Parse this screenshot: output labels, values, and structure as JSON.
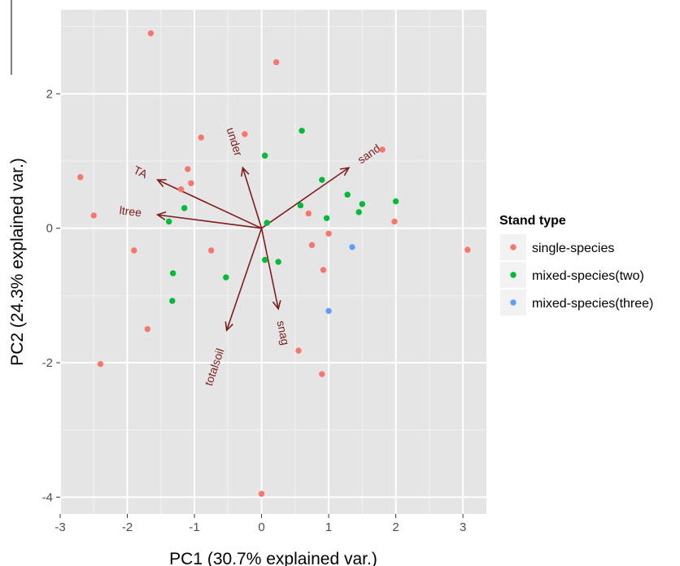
{
  "chart_data": {
    "type": "scatter",
    "title": "",
    "xlabel": "PC1 (30.7% explained var.)",
    "ylabel": "PC2 (24.3% explained var.)",
    "xlim": [
      -3.0,
      3.35
    ],
    "ylim": [
      -4.25,
      3.25
    ],
    "xticks": [
      -3,
      -2,
      -1,
      0,
      1,
      2,
      3
    ],
    "yticks": [
      -4,
      -2,
      0,
      2
    ],
    "grid": true,
    "legend": {
      "title": "Stand type",
      "placement": "right"
    },
    "series": [
      {
        "name": "single-species",
        "color": "#F8766D",
        "points": [
          [
            -1.65,
            2.9
          ],
          [
            0.22,
            2.47
          ],
          [
            -0.9,
            1.35
          ],
          [
            -0.25,
            1.4
          ],
          [
            -1.1,
            0.88
          ],
          [
            -1.05,
            0.67
          ],
          [
            -1.2,
            0.58
          ],
          [
            -2.7,
            0.76
          ],
          [
            -2.5,
            0.19
          ],
          [
            -1.9,
            -0.33
          ],
          [
            -0.75,
            -0.33
          ],
          [
            0.7,
            0.22
          ],
          [
            1.0,
            -0.08
          ],
          [
            0.75,
            -0.25
          ],
          [
            0.92,
            -0.62
          ],
          [
            1.8,
            1.17
          ],
          [
            1.98,
            0.1
          ],
          [
            3.07,
            -0.32
          ],
          [
            -1.7,
            -1.5
          ],
          [
            -2.4,
            -2.02
          ],
          [
            0.55,
            -1.82
          ],
          [
            0.9,
            -2.17
          ],
          [
            0.0,
            -3.95
          ]
        ]
      },
      {
        "name": "mixed-species(two)",
        "color": "#00BA38",
        "points": [
          [
            0.6,
            1.45
          ],
          [
            0.05,
            1.08
          ],
          [
            0.9,
            0.72
          ],
          [
            1.28,
            0.5
          ],
          [
            0.58,
            0.34
          ],
          [
            1.5,
            0.36
          ],
          [
            2.0,
            0.4
          ],
          [
            1.45,
            0.24
          ],
          [
            0.97,
            0.15
          ],
          [
            -1.15,
            0.3
          ],
          [
            -1.38,
            0.1
          ],
          [
            0.08,
            0.08
          ],
          [
            0.05,
            -0.47
          ],
          [
            0.25,
            -0.5
          ],
          [
            -1.32,
            -0.67
          ],
          [
            -0.53,
            -0.73
          ],
          [
            -1.33,
            -1.08
          ]
        ]
      },
      {
        "name": "mixed-species(three)",
        "color": "#619CFF",
        "points": [
          [
            1.35,
            -0.28
          ],
          [
            1.0,
            -1.23
          ]
        ]
      }
    ],
    "vectors": [
      {
        "label": "TA",
        "end": [
          -1.55,
          0.72
        ]
      },
      {
        "label": "ltree",
        "end": [
          -1.55,
          0.2
        ]
      },
      {
        "label": "under",
        "end": [
          -0.28,
          0.9
        ]
      },
      {
        "label": "sand",
        "end": [
          1.3,
          0.9
        ]
      },
      {
        "label": "snag",
        "end": [
          0.25,
          -1.2
        ]
      },
      {
        "label": "totalsoil",
        "end": [
          -0.52,
          -1.52
        ]
      }
    ],
    "vector_color": "#7f1d1d"
  }
}
